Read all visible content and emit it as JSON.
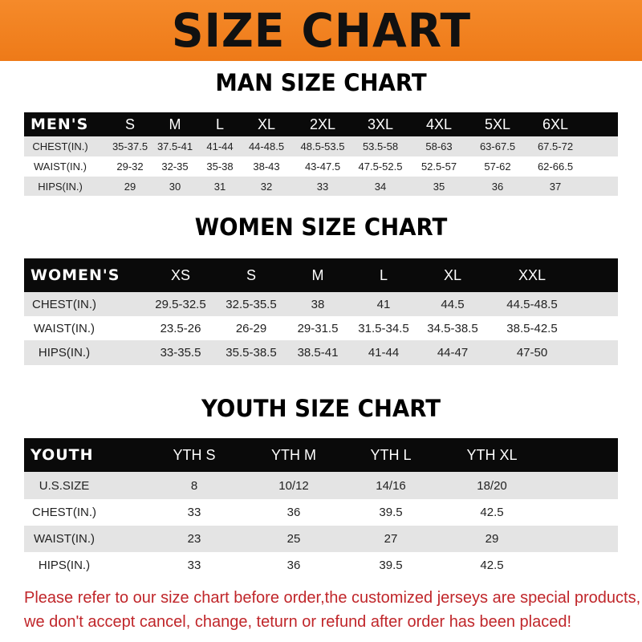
{
  "banner_title": "SIZE CHART",
  "men": {
    "title": "MAN SIZE CHART",
    "header": [
      "MEN'S",
      "S",
      "M",
      "L",
      "XL",
      "2XL",
      "3XL",
      "4XL",
      "5XL",
      "6XL"
    ],
    "rows": [
      [
        "CHEST(IN.)",
        "35-37.5",
        "37.5-41",
        "41-44",
        "44-48.5",
        "48.5-53.5",
        "53.5-58",
        "58-63",
        "63-67.5",
        "67.5-72"
      ],
      [
        "WAIST(IN.)",
        "29-32",
        "32-35",
        "35-38",
        "38-43",
        "43-47.5",
        "47.5-52.5",
        "52.5-57",
        "57-62",
        "62-66.5"
      ],
      [
        "HIPS(IN.)",
        "29",
        "30",
        "31",
        "32",
        "33",
        "34",
        "35",
        "36",
        "37"
      ]
    ]
  },
  "women": {
    "title": "WOMEN SIZE CHART",
    "header": [
      "WOMEN'S",
      "XS",
      "S",
      "M",
      "L",
      "XL",
      "XXL"
    ],
    "rows": [
      [
        "CHEST(IN.)",
        "29.5-32.5",
        "32.5-35.5",
        "38",
        "41",
        "44.5",
        "44.5-48.5"
      ],
      [
        "WAIST(IN.)",
        "23.5-26",
        "26-29",
        "29-31.5",
        "31.5-34.5",
        "34.5-38.5",
        "38.5-42.5"
      ],
      [
        "HIPS(IN.)",
        "33-35.5",
        "35.5-38.5",
        "38.5-41",
        "41-44",
        "44-47",
        "47-50"
      ]
    ]
  },
  "youth": {
    "title": "YOUTH SIZE CHART",
    "header": [
      "YOUTH",
      "YTH S",
      "YTH M",
      "YTH L",
      "YTH XL"
    ],
    "rows": [
      [
        "U.S.SIZE",
        "8",
        "10/12",
        "14/16",
        "18/20"
      ],
      [
        "CHEST(IN.)",
        "33",
        "36",
        "39.5",
        "42.5"
      ],
      [
        "WAIST(IN.)",
        "23",
        "25",
        "27",
        "29"
      ],
      [
        "HIPS(IN.)",
        "33",
        "36",
        "39.5",
        "42.5"
      ]
    ]
  },
  "note": {
    "line1": "Please refer to our size chart before order,the customized jerseys are special products,",
    "line2": "we don't accept cancel, change, teturn or refund after order has been placed!"
  },
  "colors": {
    "banner": "#f08020",
    "header_row": "#0a0a0a",
    "stripe": "#e4e4e4",
    "note": "#c0262a"
  }
}
